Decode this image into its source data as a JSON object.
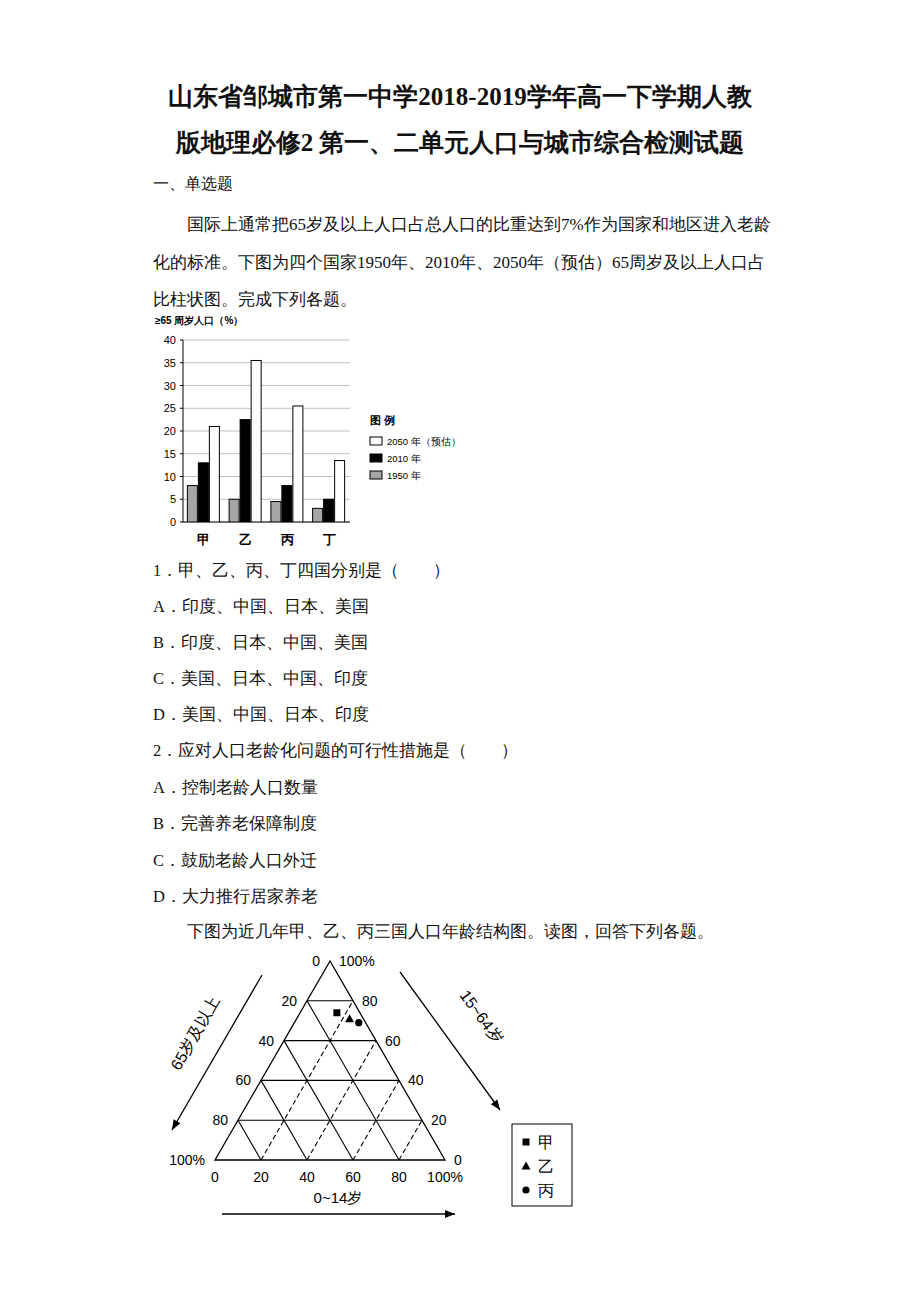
{
  "title": [
    "山东省邹城市第一中学2018-2019学年高一下学期人教",
    "版地理必修2 第一、二单元人口与城市综合检测试题"
  ],
  "section": "一、单选题",
  "intro_1": "国际上通常把65岁及以上人口占总人口的比重达到7%作为国家和地区进入老龄化的标准。下图为四个国家1950年、2010年、2050年（预估）65周岁及以上人口占比柱状图。完成下列各题。",
  "questions": [
    {
      "stem": "1．甲、乙、丙、丁四国分别是（　　）",
      "options": [
        "A．印度、中国、日本、美国",
        "B．印度、日本、中国、美国",
        "C．美国、日本、中国、印度",
        "D．美国、中国、日本、印度"
      ]
    },
    {
      "stem": "2．应对人口老龄化问题的可行性措施是（　　）",
      "options": [
        "A．控制老龄人口数量",
        "B．完善养老保障制度",
        "C．鼓励老龄人口外迁",
        "D．大力推行居家养老"
      ]
    }
  ],
  "intro_2": "下图为近几年甲、乙、丙三国人口年龄结构图。读图，回答下列各题。",
  "chart_data": [
    {
      "type": "bar",
      "y_label": "≥65 周岁人口（%）",
      "categories": [
        "甲",
        "乙",
        "丙",
        "丁"
      ],
      "series": [
        {
          "name": "1950 年",
          "color": "#a6a6a6",
          "values": [
            8,
            5,
            4.5,
            3
          ]
        },
        {
          "name": "2010 年",
          "color": "#000000",
          "values": [
            13,
            22.5,
            8,
            5
          ]
        },
        {
          "name": "2050 年（预估）",
          "color": "#ffffff",
          "values": [
            21,
            35.5,
            25.5,
            13.5
          ]
        }
      ],
      "ylim": [
        0,
        40
      ],
      "yticks": [
        0,
        5,
        10,
        15,
        20,
        25,
        30,
        35,
        40
      ],
      "grid": true,
      "legend_title": "图 例"
    },
    {
      "type": "ternary",
      "axes": [
        {
          "label": "65岁及以上",
          "lim": [
            0,
            100
          ],
          "ticks": [
            0,
            20,
            40,
            60,
            80,
            {
              "value": 100,
              "label": "100%"
            }
          ]
        },
        {
          "label": "15~64岁",
          "lim": [
            0,
            100
          ],
          "ticks": [
            0,
            20,
            40,
            60,
            80,
            {
              "value": 100,
              "label": "100%"
            }
          ]
        },
        {
          "label": "0~14岁",
          "lim": [
            0,
            100
          ],
          "ticks": [
            0,
            20,
            40,
            60,
            80,
            {
              "value": 100,
              "label": "100%"
            }
          ]
        }
      ],
      "series": [
        {
          "name": "甲",
          "marker": "square",
          "values": [
            10,
            74,
            16
          ]
        },
        {
          "name": "乙",
          "marker": "triangle",
          "values": [
            6,
            71,
            23
          ]
        },
        {
          "name": "丙",
          "marker": "circle",
          "values": [
            3,
            69,
            28
          ]
        }
      ],
      "grid": true
    }
  ]
}
